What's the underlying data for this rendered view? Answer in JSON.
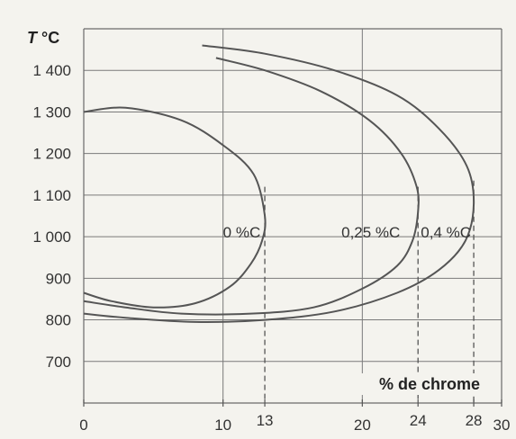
{
  "chart_data": {
    "type": "line",
    "ylabel": "T °C",
    "xlabel": "% de chrome",
    "xlim": [
      0,
      30
    ],
    "ylim": [
      600,
      1500
    ],
    "y_ticks": [
      {
        "value": 1400,
        "label": "1 400"
      },
      {
        "value": 1300,
        "label": "1 300"
      },
      {
        "value": 1200,
        "label": "1 200"
      },
      {
        "value": 1100,
        "label": "1 100"
      },
      {
        "value": 1000,
        "label": "1 000"
      },
      {
        "value": 900,
        "label": "900"
      },
      {
        "value": 800,
        "label": "800"
      },
      {
        "value": 700,
        "label": "700"
      }
    ],
    "x_ticks": [
      {
        "value": 0,
        "label": "0"
      },
      {
        "value": 10,
        "label": "10"
      },
      {
        "value": 13,
        "label": "13"
      },
      {
        "value": 20,
        "label": "20"
      },
      {
        "value": 24,
        "label": "24"
      },
      {
        "value": 28,
        "label": "28"
      },
      {
        "value": 30,
        "label": "30"
      }
    ],
    "grid": true,
    "series": [
      {
        "name": "0 %C",
        "label_at": [
          10,
          1030
        ],
        "marker_x": 13,
        "points": [
          [
            0,
            1300
          ],
          [
            3,
            1310
          ],
          [
            7,
            1280
          ],
          [
            10,
            1220
          ],
          [
            12.2,
            1150
          ],
          [
            13,
            1050
          ],
          [
            12.8,
            990
          ],
          [
            12,
            935
          ],
          [
            10.5,
            880
          ],
          [
            8,
            840
          ],
          [
            5,
            830
          ],
          [
            2,
            845
          ],
          [
            0,
            865
          ]
        ]
      },
      {
        "name": "0,25 %C",
        "label_at": [
          18.5,
          1030
        ],
        "marker_x": 24,
        "points": [
          [
            9.5,
            1430
          ],
          [
            13,
            1400
          ],
          [
            17,
            1350
          ],
          [
            20.5,
            1280
          ],
          [
            22.8,
            1200
          ],
          [
            23.9,
            1120
          ],
          [
            24,
            1060
          ],
          [
            23.6,
            990
          ],
          [
            22.5,
            930
          ],
          [
            20,
            875
          ],
          [
            16.5,
            830
          ],
          [
            12,
            815
          ],
          [
            7,
            815
          ],
          [
            3,
            830
          ],
          [
            0,
            845
          ]
        ]
      },
      {
        "name": "0,4 %C",
        "label_at": [
          24.2,
          1030
        ],
        "marker_x": 28,
        "points": [
          [
            8.5,
            1460
          ],
          [
            13,
            1440
          ],
          [
            18,
            1400
          ],
          [
            22.5,
            1340
          ],
          [
            25.5,
            1260
          ],
          [
            27.5,
            1170
          ],
          [
            28,
            1080
          ],
          [
            27.4,
            990
          ],
          [
            25.5,
            920
          ],
          [
            22.5,
            865
          ],
          [
            18,
            820
          ],
          [
            13,
            800
          ],
          [
            8,
            795
          ],
          [
            3,
            805
          ],
          [
            0,
            815
          ]
        ]
      }
    ]
  }
}
